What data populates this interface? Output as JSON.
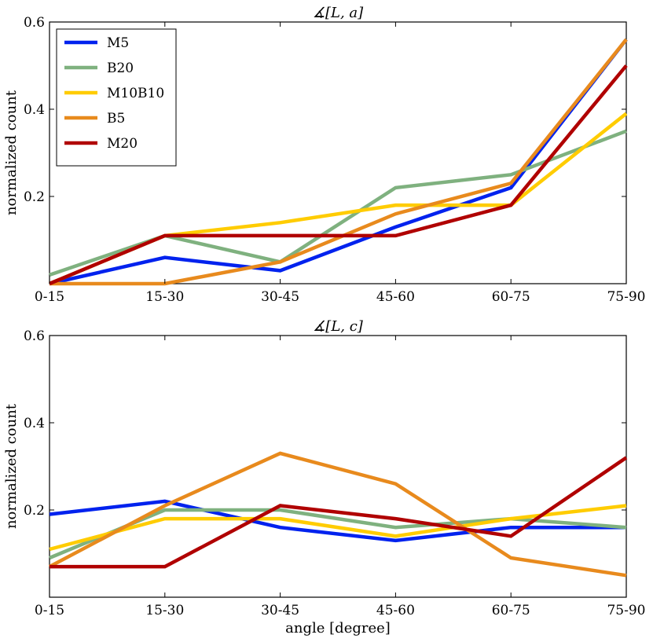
{
  "chart_data": [
    {
      "type": "line",
      "title": "∡[L, a]",
      "xlabel": "",
      "ylabel": "normalized count",
      "categories": [
        "0-15",
        "15-30",
        "30-45",
        "45-60",
        "60-75",
        "75-90"
      ],
      "ylim": [
        0,
        0.6
      ],
      "yticks": [
        0.2,
        0.4,
        0.6
      ],
      "ytick_labels": [
        "0.2",
        "0.4",
        "0.6"
      ],
      "legend_position": "top-left",
      "series": [
        {
          "name": "M5",
          "color": "#0022ee",
          "values": [
            0.0,
            0.06,
            0.03,
            0.13,
            0.22,
            0.56
          ]
        },
        {
          "name": "B20",
          "color": "#7fb17f",
          "values": [
            0.02,
            0.11,
            0.05,
            0.22,
            0.25,
            0.35
          ]
        },
        {
          "name": "M10B10",
          "color": "#ffcc00",
          "values": [
            0.0,
            0.11,
            0.14,
            0.18,
            0.18,
            0.39
          ]
        },
        {
          "name": "B5",
          "color": "#e88a1d",
          "values": [
            0.0,
            0.0,
            0.05,
            0.16,
            0.23,
            0.56
          ]
        },
        {
          "name": "M20",
          "color": "#b00000",
          "values": [
            0.0,
            0.11,
            0.11,
            0.11,
            0.18,
            0.5
          ]
        }
      ]
    },
    {
      "type": "line",
      "title": "∡[L, c]",
      "xlabel": "angle [degree]",
      "ylabel": "normalized count",
      "categories": [
        "0-15",
        "15-30",
        "30-45",
        "45-60",
        "60-75",
        "75-90"
      ],
      "ylim": [
        0,
        0.6
      ],
      "yticks": [
        0.2,
        0.4,
        0.6
      ],
      "ytick_labels": [
        "0.2",
        "0.4",
        "0.6"
      ],
      "series": [
        {
          "name": "M5",
          "color": "#0022ee",
          "values": [
            0.19,
            0.22,
            0.16,
            0.13,
            0.16,
            0.16
          ]
        },
        {
          "name": "B20",
          "color": "#7fb17f",
          "values": [
            0.09,
            0.2,
            0.2,
            0.16,
            0.18,
            0.16
          ]
        },
        {
          "name": "M10B10",
          "color": "#ffcc00",
          "values": [
            0.11,
            0.18,
            0.18,
            0.14,
            0.18,
            0.21
          ]
        },
        {
          "name": "B5",
          "color": "#e88a1d",
          "values": [
            0.07,
            0.21,
            0.33,
            0.26,
            0.09,
            0.05
          ]
        },
        {
          "name": "M20",
          "color": "#b00000",
          "values": [
            0.07,
            0.07,
            0.21,
            0.18,
            0.14,
            0.32
          ]
        }
      ]
    }
  ]
}
